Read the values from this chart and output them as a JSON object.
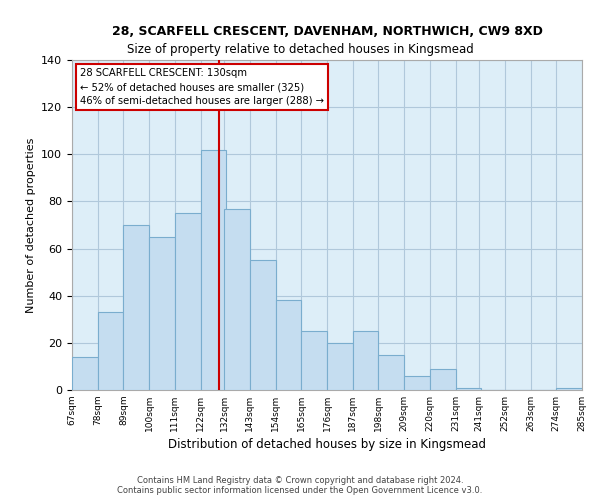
{
  "title": "28, SCARFELL CRESCENT, DAVENHAM, NORTHWICH, CW9 8XD",
  "subtitle": "Size of property relative to detached houses in Kingsmead",
  "xlabel": "Distribution of detached houses by size in Kingsmead",
  "ylabel": "Number of detached properties",
  "bar_edges": [
    67,
    78,
    89,
    100,
    111,
    122,
    132,
    143,
    154,
    165,
    176,
    187,
    198,
    209,
    220,
    231,
    241,
    252,
    263,
    274,
    285
  ],
  "bar_heights": [
    14,
    33,
    70,
    65,
    75,
    102,
    77,
    55,
    38,
    25,
    20,
    25,
    15,
    6,
    9,
    1,
    0,
    0,
    0,
    1
  ],
  "tick_labels": [
    "67sqm",
    "78sqm",
    "89sqm",
    "100sqm",
    "111sqm",
    "122sqm",
    "132sqm",
    "143sqm",
    "154sqm",
    "165sqm",
    "176sqm",
    "187sqm",
    "198sqm",
    "209sqm",
    "220sqm",
    "231sqm",
    "241sqm",
    "252sqm",
    "263sqm",
    "274sqm",
    "285sqm"
  ],
  "bar_color": "#c5ddf0",
  "bar_edge_color": "#7aadce",
  "reference_line_x": 130,
  "reference_line_color": "#cc0000",
  "ylim": [
    0,
    140
  ],
  "yticks": [
    0,
    20,
    40,
    60,
    80,
    100,
    120,
    140
  ],
  "annotation_title": "28 SCARFELL CRESCENT: 130sqm",
  "annotation_line1": "← 52% of detached houses are smaller (325)",
  "annotation_line2": "46% of semi-detached houses are larger (288) →",
  "footer_line1": "Contains HM Land Registry data © Crown copyright and database right 2024.",
  "footer_line2": "Contains public sector information licensed under the Open Government Licence v3.0.",
  "fig_background": "#ffffff",
  "plot_background": "#ddeef8",
  "annotation_box_fill": "#ffffff",
  "annotation_box_edge": "#cc0000",
  "grid_color": "#b0c8db",
  "spine_color": "#aaaaaa"
}
